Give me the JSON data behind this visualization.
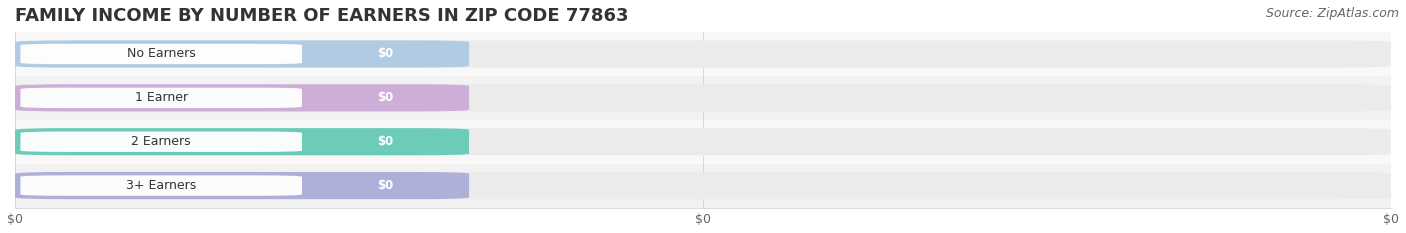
{
  "title": "FAMILY INCOME BY NUMBER OF EARNERS IN ZIP CODE 77863",
  "source": "Source: ZipAtlas.com",
  "categories": [
    "No Earners",
    "1 Earner",
    "2 Earners",
    "3+ Earners"
  ],
  "values": [
    0,
    0,
    0,
    0
  ],
  "bar_colors": [
    "#abc8e2",
    "#c9a8d4",
    "#5ec8b4",
    "#a8aad8"
  ],
  "bar_bg_color": "#ebebeb",
  "row_bg_colors": [
    "#f8f8f8",
    "#f2f2f2"
  ],
  "background_color": "#ffffff",
  "title_fontsize": 13,
  "source_fontsize": 9,
  "xlim": [
    0,
    1
  ],
  "figsize": [
    14.06,
    2.33
  ],
  "dpi": 100
}
